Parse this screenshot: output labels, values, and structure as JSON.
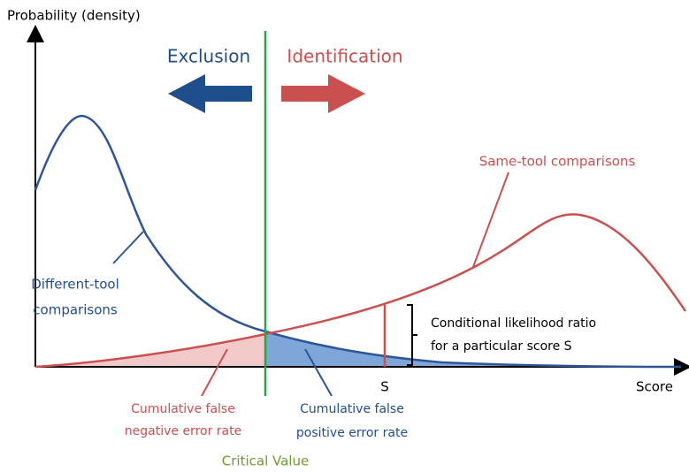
{
  "axis": {
    "y_label": "Probability (density)",
    "x_label": "Score",
    "score_marker": "S"
  },
  "arrows": {
    "left": "Exclusion",
    "right": "Identification"
  },
  "curves": {
    "same_tool": "Same-tool comparisons",
    "different_tool": [
      "Different-tool",
      "comparisons"
    ]
  },
  "annotations": {
    "likelihood_ratio": [
      "Conditional likelihood ratio",
      "for a particular score S"
    ],
    "false_negative": [
      "Cumulative false",
      "negative error rate"
    ],
    "false_positive": [
      "Cumulative false",
      "positive error rate"
    ],
    "critical_value": "Critical Value"
  }
}
